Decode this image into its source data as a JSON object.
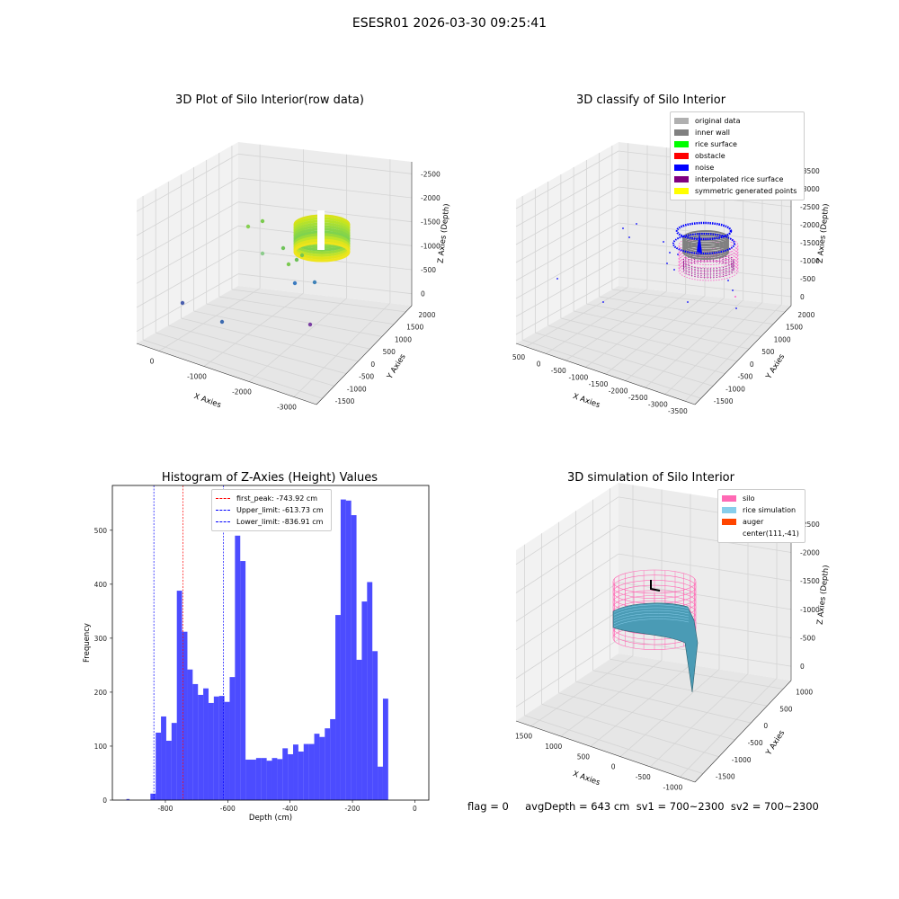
{
  "figure": {
    "suptitle": "ESESR01 2026-03-30 09:25:41",
    "footer": "flag = 0     avgDepth = 643 cm  sv1 = 700~2300  sv2 = 700~2300"
  },
  "panels": {
    "p1": {
      "title": "3D Plot of Silo Interior(row data)",
      "xlabel": "X Axies",
      "ylabel": "Y Axies",
      "zlabel": "Z Axies (Depth)",
      "xticks": [
        "-3000",
        "-2000",
        "-1000",
        "0"
      ],
      "yticks": [
        "-1500",
        "-1000",
        "-500",
        "0",
        "500",
        "1000",
        "1500",
        "2000"
      ],
      "zticks": [
        "0",
        "-500",
        "-1000",
        "-1500",
        "-2000",
        "-2500"
      ]
    },
    "p2": {
      "title": "3D classify of Silo Interior",
      "xlabel": "X Axies",
      "ylabel": "Y Axies",
      "zlabel": "Z Axies (Depth)",
      "xticks": [
        "-3500",
        "-3000",
        "-2500",
        "-2000",
        "-1500",
        "-1000",
        "-500",
        "0",
        "500"
      ],
      "yticks": [
        "-1500",
        "-1000",
        "-500",
        "0",
        "500",
        "1000",
        "1500",
        "2000"
      ],
      "zticks": [
        "0",
        "-500",
        "-1000",
        "-1500",
        "-2000",
        "-2500",
        "-3000",
        "-3500"
      ],
      "legend": [
        {
          "label": "original data",
          "color": "#b0b0b0"
        },
        {
          "label": "inner wall",
          "color": "#808080"
        },
        {
          "label": "rice surface",
          "color": "#00ff00"
        },
        {
          "label": "obstacle",
          "color": "#ff0000"
        },
        {
          "label": "noise",
          "color": "#0000ff"
        },
        {
          "label": "interpolated rice surface",
          "color": "#800080"
        },
        {
          "label": "symmetric generated points",
          "color": "#ffff00"
        }
      ]
    },
    "p4": {
      "title": "3D simulation of Silo Interior",
      "xlabel": "X Axies",
      "ylabel": "Y Axies",
      "zlabel": "Z Axies (Depth)",
      "xticks": [
        "-1000",
        "-500",
        "0",
        "500",
        "1000",
        "1500"
      ],
      "yticks": [
        "-1500",
        "-1000",
        "-500",
        "0",
        "500",
        "1000"
      ],
      "zticks": [
        "0",
        "-500",
        "-1000",
        "-1500",
        "-2000",
        "-2500"
      ],
      "legend": [
        {
          "label": "silo",
          "color": "#ff69b4"
        },
        {
          "label": "rice simulation",
          "color": "#87ceeb"
        },
        {
          "label": "auger",
          "color": "#ff4500"
        },
        {
          "label": "center(111,-41)",
          "color": ""
        }
      ]
    }
  },
  "chart_data": [
    {
      "type": "bar",
      "title": "Histogram of Z-Axies (Height) Values",
      "xlabel": "Depth (cm)",
      "ylabel": "Frequency",
      "xlim": [
        -970,
        45
      ],
      "ylim": [
        0,
        583
      ],
      "xticks": [
        -800,
        -600,
        -400,
        -200,
        0
      ],
      "yticks": [
        0,
        100,
        200,
        300,
        400,
        500
      ],
      "bar_color": "#0000ff",
      "bin_start": -848,
      "bin_width": 16.95,
      "values": [
        12,
        125,
        155,
        110,
        143,
        388,
        312,
        242,
        215,
        195,
        207,
        180,
        192,
        193,
        182,
        228,
        490,
        443,
        75,
        75,
        78,
        78,
        73,
        78,
        76,
        96,
        85,
        103,
        90,
        104,
        104,
        123,
        117,
        133,
        150,
        343,
        557,
        555,
        528,
        260,
        368,
        404,
        276,
        62,
        188
      ],
      "outlier_bars": [
        {
          "x": -920,
          "value": 2
        }
      ],
      "vlines": [
        {
          "label": "first_peak: -743.92 cm",
          "x": -743.92,
          "color": "#ff0000"
        },
        {
          "label": "Upper_limit: -613.73 cm",
          "x": -613.73,
          "color": "#0000ff"
        },
        {
          "label": "Lower_limit: -836.91 cm",
          "x": -836.91,
          "color": "#0000ff"
        }
      ],
      "legend_position": "top-center"
    }
  ]
}
